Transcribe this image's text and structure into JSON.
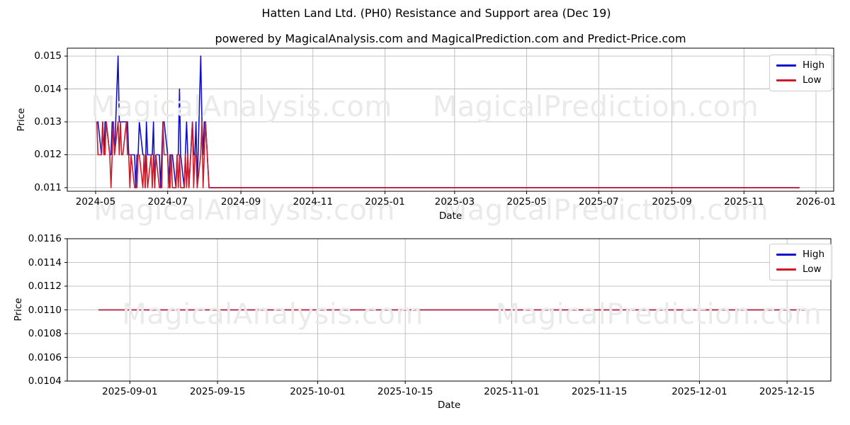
{
  "page": {
    "title": "Hatten Land Ltd. (PH0) Resistance and Support area (Dec 19)",
    "subtitle": "powered by MagicalAnalysis.com and MagicalPrediction.com and Predict-Price.com"
  },
  "watermarks": {
    "left": "MagicalAnalysis.com",
    "right": "MagicalPrediction.com"
  },
  "colors": {
    "high": "#1010cc",
    "low": "#cc1a28",
    "grid": "#b3b3b3",
    "spine": "#000000",
    "watermark": "#eaeaea"
  },
  "chart_data": [
    {
      "type": "line",
      "ylabel": "Price",
      "xlabel": "Date",
      "grid": true,
      "legend_position": "upper right",
      "ylim": [
        0.01089,
        0.01524
      ],
      "xlim": [
        "2024-04-07",
        "2026-01-16"
      ],
      "yticks": [
        {
          "v": 0.011,
          "label": "0.011"
        },
        {
          "v": 0.012,
          "label": "0.012"
        },
        {
          "v": 0.013,
          "label": "0.013"
        },
        {
          "v": 0.014,
          "label": "0.014"
        },
        {
          "v": 0.015,
          "label": "0.015"
        }
      ],
      "xticks": [
        {
          "d": "2024-05-01",
          "label": "2024-05"
        },
        {
          "d": "2024-07-01",
          "label": "2024-07"
        },
        {
          "d": "2024-09-01",
          "label": "2024-09"
        },
        {
          "d": "2024-11-01",
          "label": "2024-11"
        },
        {
          "d": "2025-01-01",
          "label": "2025-01"
        },
        {
          "d": "2025-03-01",
          "label": "2025-03"
        },
        {
          "d": "2025-05-01",
          "label": "2025-05"
        },
        {
          "d": "2025-07-01",
          "label": "2025-07"
        },
        {
          "d": "2025-09-01",
          "label": "2025-09"
        },
        {
          "d": "2025-11-01",
          "label": "2025-11"
        },
        {
          "d": "2026-01-01",
          "label": "2026-01"
        }
      ],
      "x": [
        "2024-05-02",
        "2024-05-03",
        "2024-05-06",
        "2024-05-07",
        "2024-05-08",
        "2024-05-09",
        "2024-05-10",
        "2024-05-13",
        "2024-05-14",
        "2024-05-15",
        "2024-05-16",
        "2024-05-17",
        "2024-05-20",
        "2024-05-21",
        "2024-05-22",
        "2024-05-23",
        "2024-05-24",
        "2024-05-27",
        "2024-05-28",
        "2024-05-29",
        "2024-05-30",
        "2024-05-31",
        "2024-06-03",
        "2024-06-04",
        "2024-06-05",
        "2024-06-06",
        "2024-06-07",
        "2024-06-10",
        "2024-06-11",
        "2024-06-12",
        "2024-06-13",
        "2024-06-14",
        "2024-06-17",
        "2024-06-18",
        "2024-06-19",
        "2024-06-20",
        "2024-06-21",
        "2024-06-24",
        "2024-06-25",
        "2024-06-26",
        "2024-06-27",
        "2024-06-28",
        "2024-07-01",
        "2024-07-02",
        "2024-07-03",
        "2024-07-04",
        "2024-07-05",
        "2024-07-08",
        "2024-07-09",
        "2024-07-10",
        "2024-07-11",
        "2024-07-12",
        "2024-07-15",
        "2024-07-16",
        "2024-07-17",
        "2024-07-18",
        "2024-07-19",
        "2024-07-22",
        "2024-07-23",
        "2024-07-24",
        "2024-07-25",
        "2024-07-26",
        "2024-07-29",
        "2024-07-30",
        "2024-07-31",
        "2024-08-01",
        "2024-08-02",
        "2024-08-05",
        "2024-09-02",
        "2024-10-01",
        "2024-11-01",
        "2024-12-02",
        "2025-01-02",
        "2025-02-03",
        "2025-03-03",
        "2025-04-01",
        "2025-05-01",
        "2025-06-02",
        "2025-07-01",
        "2025-08-01",
        "2025-09-01",
        "2025-10-01",
        "2025-11-03",
        "2025-12-01",
        "2025-12-18"
      ],
      "series": [
        {
          "name": "High",
          "color": "#1010cc",
          "values": [
            0.013,
            0.013,
            0.012,
            0.013,
            0.012,
            0.013,
            0.013,
            0.012,
            0.012,
            0.013,
            0.013,
            0.012,
            0.015,
            0.013,
            0.013,
            0.013,
            0.013,
            0.013,
            0.013,
            0.012,
            0.012,
            0.012,
            0.012,
            0.011,
            0.012,
            0.012,
            0.013,
            0.012,
            0.012,
            0.011,
            0.013,
            0.012,
            0.012,
            0.012,
            0.013,
            0.011,
            0.012,
            0.012,
            0.011,
            0.012,
            0.013,
            0.013,
            0.012,
            0.011,
            0.012,
            0.012,
            0.012,
            0.011,
            0.012,
            0.012,
            0.014,
            0.012,
            0.011,
            0.012,
            0.013,
            0.012,
            0.011,
            0.013,
            0.012,
            0.012,
            0.013,
            0.011,
            0.015,
            0.013,
            0.012,
            0.013,
            0.013,
            0.011,
            0.011,
            0.011,
            0.011,
            0.011,
            0.011,
            0.011,
            0.011,
            0.011,
            0.011,
            0.011,
            0.011,
            0.011,
            0.011,
            0.011,
            0.011,
            0.011,
            0.011
          ]
        },
        {
          "name": "Low",
          "color": "#cc1a28",
          "values": [
            0.013,
            0.012,
            0.012,
            0.013,
            0.012,
            0.012,
            0.013,
            0.012,
            0.011,
            0.012,
            0.013,
            0.012,
            0.013,
            0.012,
            0.013,
            0.012,
            0.012,
            0.013,
            0.012,
            0.012,
            0.011,
            0.012,
            0.011,
            0.011,
            0.011,
            0.012,
            0.012,
            0.011,
            0.012,
            0.011,
            0.012,
            0.011,
            0.012,
            0.011,
            0.012,
            0.011,
            0.012,
            0.011,
            0.011,
            0.011,
            0.013,
            0.012,
            0.012,
            0.011,
            0.011,
            0.012,
            0.011,
            0.011,
            0.012,
            0.011,
            0.012,
            0.011,
            0.011,
            0.012,
            0.011,
            0.012,
            0.011,
            0.013,
            0.011,
            0.012,
            0.012,
            0.011,
            0.012,
            0.013,
            0.011,
            0.012,
            0.013,
            0.011,
            0.011,
            0.011,
            0.011,
            0.011,
            0.011,
            0.011,
            0.011,
            0.011,
            0.011,
            0.011,
            0.011,
            0.011,
            0.011,
            0.011,
            0.011,
            0.011,
            0.011
          ]
        }
      ]
    },
    {
      "type": "line",
      "ylabel": "Price",
      "xlabel": "Date",
      "grid": true,
      "legend_position": "upper right",
      "ylim": [
        0.0104,
        0.0116
      ],
      "xlim": [
        "2025-08-22",
        "2025-12-22"
      ],
      "yticks": [
        {
          "v": 0.0104,
          "label": "0.0104"
        },
        {
          "v": 0.0106,
          "label": "0.0106"
        },
        {
          "v": 0.0108,
          "label": "0.0108"
        },
        {
          "v": 0.011,
          "label": "0.0110"
        },
        {
          "v": 0.0112,
          "label": "0.0112"
        },
        {
          "v": 0.0114,
          "label": "0.0114"
        },
        {
          "v": 0.0116,
          "label": "0.0116"
        }
      ],
      "xticks": [
        {
          "d": "2025-09-01",
          "label": "2025-09-01"
        },
        {
          "d": "2025-09-15",
          "label": "2025-09-15"
        },
        {
          "d": "2025-10-01",
          "label": "2025-10-01"
        },
        {
          "d": "2025-10-15",
          "label": "2025-10-15"
        },
        {
          "d": "2025-11-01",
          "label": "2025-11-01"
        },
        {
          "d": "2025-11-15",
          "label": "2025-11-15"
        },
        {
          "d": "2025-12-01",
          "label": "2025-12-01"
        },
        {
          "d": "2025-12-15",
          "label": "2025-12-15"
        }
      ],
      "x": [
        "2025-08-27",
        "2025-09-01",
        "2025-09-15",
        "2025-10-01",
        "2025-10-15",
        "2025-11-01",
        "2025-11-15",
        "2025-12-01",
        "2025-12-15",
        "2025-12-18"
      ],
      "series": [
        {
          "name": "High",
          "color": "#1010cc",
          "values": [
            0.011,
            0.011,
            0.011,
            0.011,
            0.011,
            0.011,
            0.011,
            0.011,
            0.011,
            0.011
          ]
        },
        {
          "name": "Low",
          "color": "#cc1a28",
          "values": [
            0.011,
            0.011,
            0.011,
            0.011,
            0.011,
            0.011,
            0.011,
            0.011,
            0.011,
            0.011
          ]
        }
      ]
    }
  ]
}
